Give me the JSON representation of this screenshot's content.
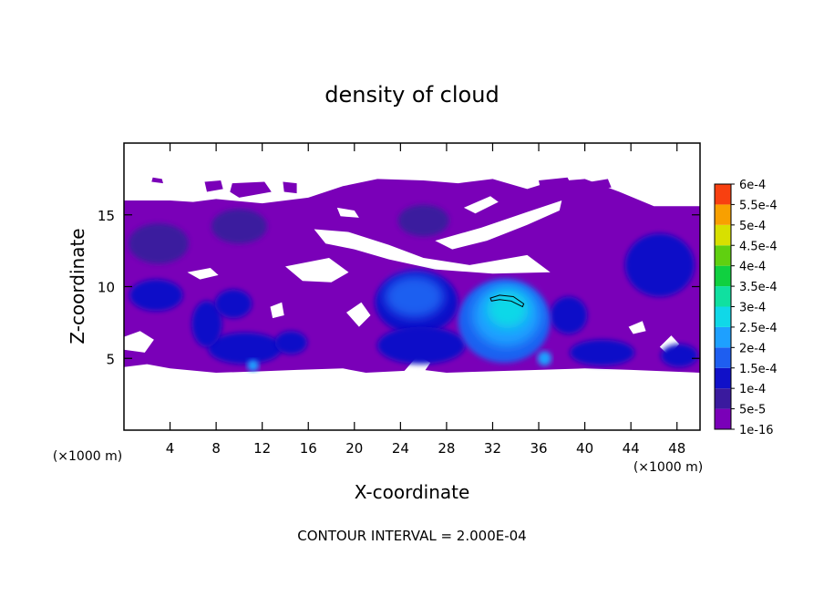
{
  "chart_data": {
    "type": "heatmap",
    "title": "density of cloud",
    "xlabel": "X-coordinate",
    "ylabel": "Z-coordinate",
    "x_unit": "(×1000 m)",
    "y_unit": "(×1000 m)",
    "x_ticks": [
      4,
      8,
      12,
      16,
      20,
      24,
      28,
      32,
      36,
      40,
      44,
      48
    ],
    "y_ticks": [
      5,
      10,
      15
    ],
    "xlim": [
      0,
      50
    ],
    "ylim": [
      0,
      20
    ],
    "footer": "CONTOUR INTERVAL = 2.000E-04",
    "colorbar": {
      "labels": [
        "1e-16",
        "5e-5",
        "1e-4",
        "1.5e-4",
        "2e-4",
        "2.5e-4",
        "3e-4",
        "3.5e-4",
        "4e-4",
        "4.5e-4",
        "5e-4",
        "5.5e-4",
        "6e-4"
      ],
      "colors": [
        "#7a00b8",
        "#3a1a9e",
        "#1010c8",
        "#1e5ef0",
        "#1ea0ff",
        "#10d8e8",
        "#10e0a0",
        "#10d040",
        "#60d010",
        "#d8e000",
        "#f8a000",
        "#f84010",
        "#f88080"
      ]
    },
    "regions": [
      {
        "level": "1e-16",
        "x": [
          0,
          50
        ],
        "z": [
          4,
          16
        ]
      },
      {
        "level": "5e-5",
        "x": [
          22,
          28
        ],
        "z": [
          7,
          10.5
        ]
      },
      {
        "level": "1.5e-4",
        "x": [
          30,
          36
        ],
        "z": [
          5,
          10
        ]
      },
      {
        "level": "2e-4",
        "x": [
          31,
          35
        ],
        "z": [
          7,
          9.5
        ]
      }
    ]
  }
}
